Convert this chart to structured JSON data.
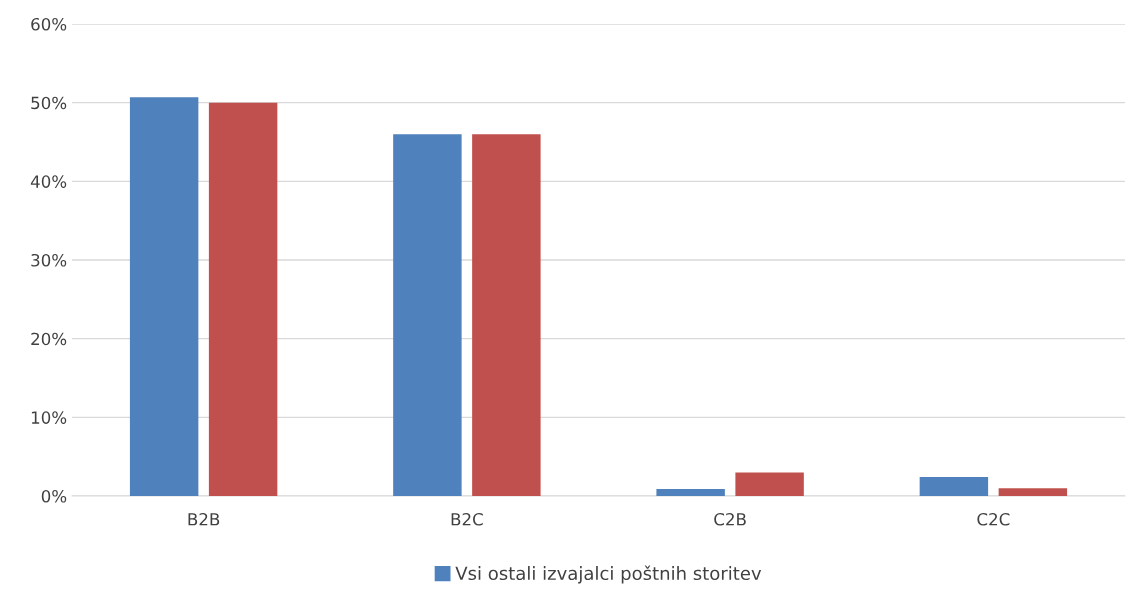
{
  "chart_data": {
    "type": "bar",
    "categories": [
      "B2B",
      "B2C",
      "C2B",
      "C2C"
    ],
    "series": [
      {
        "name": "Vsi ostali izvajalci poštnih storitev",
        "color": "#4f81bd",
        "values": [
          50.7,
          46.0,
          0.9,
          2.4
        ]
      },
      {
        "color": "#c0504d",
        "values": [
          50.0,
          46.0,
          3.0,
          1.0
        ]
      }
    ],
    "ylim": [
      0,
      60
    ],
    "yticks": [
      {
        "value": 0,
        "label": "0%"
      },
      {
        "value": 10,
        "label": "10%"
      },
      {
        "value": 20,
        "label": "20%"
      },
      {
        "value": 30,
        "label": "30%"
      },
      {
        "value": 40,
        "label": "40%"
      },
      {
        "value": 50,
        "label": "50%"
      },
      {
        "value": 60,
        "label": "60%"
      }
    ],
    "grid": "y",
    "legend": "bottom"
  }
}
